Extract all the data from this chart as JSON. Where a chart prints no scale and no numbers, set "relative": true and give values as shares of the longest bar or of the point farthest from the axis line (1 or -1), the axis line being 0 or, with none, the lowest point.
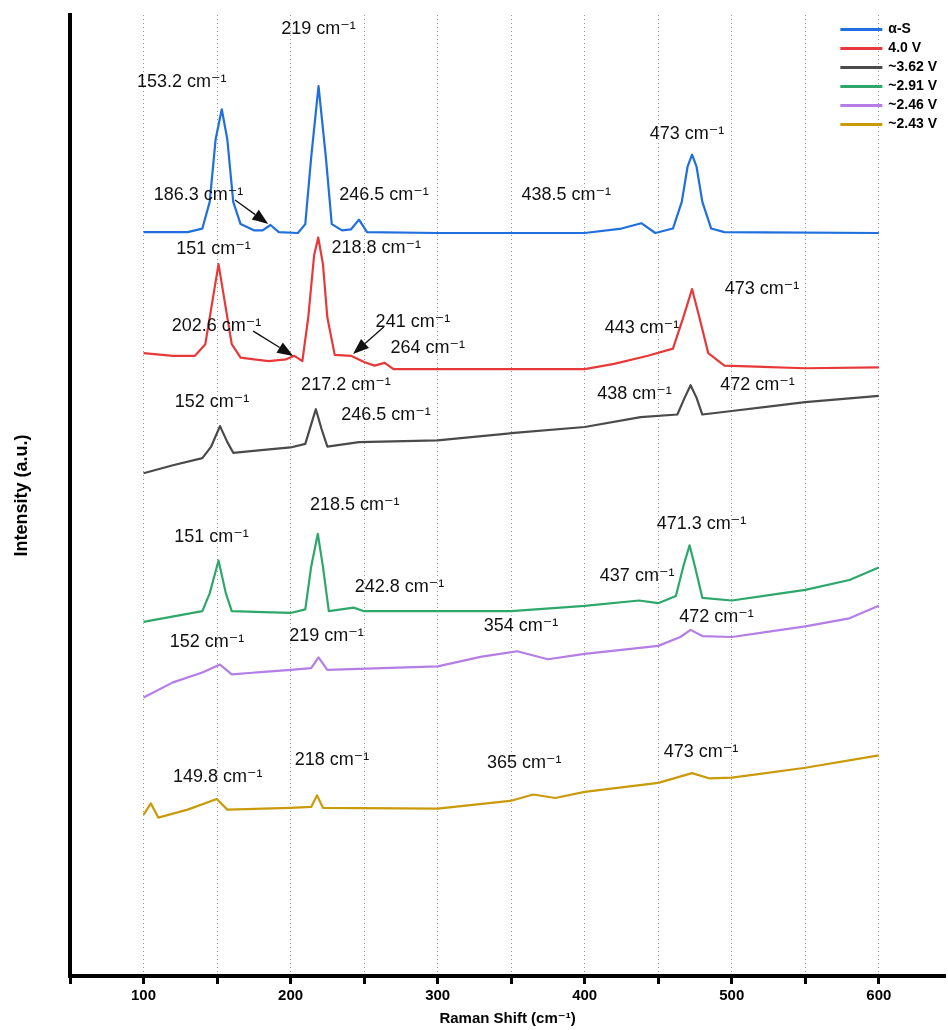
{
  "chart_data": {
    "type": "line",
    "relative": true,
    "xlabel": "Raman Shift (cm⁻¹)",
    "ylabel": "Intensity (a.u.)",
    "xlim": [
      50,
      645
    ],
    "xticks": [
      {
        "value": 50,
        "label": null
      },
      100,
      {
        "value": 150,
        "label": null
      },
      200,
      {
        "value": 250,
        "label": null
      },
      300,
      {
        "value": 350,
        "label": null
      },
      400,
      {
        "value": 450,
        "label": null
      },
      500,
      {
        "value": 550,
        "label": null
      },
      600
    ],
    "grid": "x",
    "legend": "top right",
    "series": [
      {
        "name": "α-S",
        "color": "#1f6fde",
        "x": [
          100,
          130,
          140,
          145,
          149,
          153.2,
          157,
          161,
          166,
          175,
          181,
          186.3,
          192,
          205,
          210,
          214,
          219,
          224,
          228,
          235,
          241,
          246.5,
          252,
          300,
          400,
          425,
          438.5,
          448,
          460,
          466,
          470,
          473,
          476,
          480,
          486,
          495,
          600
        ],
        "values": [
          0.836,
          0.836,
          0.84,
          0.87,
          0.94,
          0.974,
          0.94,
          0.87,
          0.845,
          0.838,
          0.838,
          0.844,
          0.836,
          0.835,
          0.845,
          0.92,
          1.0,
          0.92,
          0.845,
          0.838,
          0.839,
          0.85,
          0.836,
          0.835,
          0.835,
          0.84,
          0.846,
          0.835,
          0.84,
          0.87,
          0.91,
          0.923,
          0.91,
          0.87,
          0.84,
          0.836,
          0.835
        ]
      },
      {
        "name": "4.0 V",
        "color": "#e8393a",
        "x": [
          100,
          120,
          135,
          142,
          146,
          151,
          156,
          160,
          166,
          185,
          197,
          202.6,
          208,
          212,
          216,
          218.8,
          222,
          225,
          230,
          241,
          250,
          257,
          264,
          270,
          300,
          400,
          420,
          443,
          460,
          467,
          473,
          478,
          484,
          495,
          550,
          600
        ],
        "values": [
          0.7,
          0.697,
          0.697,
          0.71,
          0.75,
          0.8,
          0.75,
          0.71,
          0.695,
          0.691,
          0.693,
          0.697,
          0.691,
          0.74,
          0.81,
          0.83,
          0.8,
          0.74,
          0.698,
          0.697,
          0.69,
          0.686,
          0.689,
          0.682,
          0.682,
          0.682,
          0.688,
          0.697,
          0.705,
          0.74,
          0.772,
          0.74,
          0.7,
          0.686,
          0.683,
          0.684
        ]
      },
      {
        "name": "~3.62 V",
        "color": "#4a4a4a",
        "x": [
          100,
          120,
          140,
          146,
          152,
          157,
          161,
          180,
          200,
          210,
          214,
          217.2,
          221,
          225,
          246.5,
          300,
          350,
          400,
          438,
          463,
          468,
          472,
          476,
          480,
          500,
          550,
          600
        ],
        "values": [
          0.565,
          0.574,
          0.582,
          0.595,
          0.618,
          0.6,
          0.588,
          0.591,
          0.594,
          0.598,
          0.62,
          0.637,
          0.615,
          0.595,
          0.6,
          0.602,
          0.61,
          0.617,
          0.628,
          0.631,
          0.65,
          0.664,
          0.65,
          0.631,
          0.635,
          0.645,
          0.652
        ]
      },
      {
        "name": "~2.91 V",
        "color": "#2ea86a",
        "x": [
          100,
          140,
          145,
          151,
          156,
          160,
          200,
          210,
          214,
          218.5,
          222,
          226,
          242.8,
          250,
          300,
          350,
          400,
          437,
          450,
          462,
          467,
          471.3,
          475,
          480,
          500,
          550,
          580,
          600
        ],
        "values": [
          0.398,
          0.41,
          0.43,
          0.467,
          0.43,
          0.41,
          0.408,
          0.412,
          0.46,
          0.497,
          0.46,
          0.41,
          0.414,
          0.41,
          0.41,
          0.41,
          0.416,
          0.422,
          0.419,
          0.427,
          0.46,
          0.484,
          0.46,
          0.425,
          0.422,
          0.434,
          0.445,
          0.459
        ]
      },
      {
        "name": "~2.46 V",
        "color": "#b57de6",
        "x": [
          100,
          120,
          140,
          152,
          160,
          200,
          214,
          219,
          225,
          300,
          330,
          354,
          375,
          400,
          450,
          465,
          472,
          480,
          500,
          550,
          580,
          600
        ],
        "values": [
          0.313,
          0.33,
          0.341,
          0.35,
          0.339,
          0.344,
          0.346,
          0.358,
          0.344,
          0.348,
          0.359,
          0.365,
          0.356,
          0.362,
          0.371,
          0.381,
          0.389,
          0.382,
          0.381,
          0.393,
          0.402,
          0.416
        ]
      },
      {
        "name": "~2.43 V",
        "color": "#c99a0a",
        "x": [
          100,
          105,
          110,
          130,
          149.8,
          157,
          200,
          214,
          218,
          222,
          300,
          350,
          365,
          380,
          400,
          450,
          473,
          485,
          500,
          550,
          600
        ],
        "values": [
          0.181,
          0.194,
          0.178,
          0.187,
          0.199,
          0.187,
          0.189,
          0.19,
          0.203,
          0.189,
          0.188,
          0.197,
          0.204,
          0.2,
          0.207,
          0.217,
          0.228,
          0.222,
          0.223,
          0.234,
          0.248
        ]
      }
    ],
    "annotations": [
      {
        "text": "153.2 cm⁻¹",
        "x": 153.2,
        "y": 0.974
      },
      {
        "text": "219 cm⁻¹",
        "x": 219,
        "y": 1.0
      },
      {
        "text": "186.3 cm⁻¹",
        "x": 186.3,
        "y": 0.844
      },
      {
        "text": "246.5 cm⁻¹",
        "x": 246.5,
        "y": 0.85
      },
      {
        "text": "438.5 cm⁻¹",
        "x": 438.5,
        "y": 0.846
      },
      {
        "text": "473 cm⁻¹",
        "x": 473,
        "y": 0.923
      },
      {
        "text": "151 cm⁻¹",
        "x": 151,
        "y": 0.8
      },
      {
        "text": "218.8 cm⁻¹",
        "x": 218.8,
        "y": 0.83
      },
      {
        "text": "202.6 cm⁻¹",
        "x": 202.6,
        "y": 0.697
      },
      {
        "text": "241 cm⁻¹",
        "x": 241,
        "y": 0.697
      },
      {
        "text": "264 cm⁻¹",
        "x": 264,
        "y": 0.689
      },
      {
        "text": "443 cm⁻¹",
        "x": 443,
        "y": 0.697
      },
      {
        "text": "473 cm⁻¹",
        "x": 473,
        "y": 0.772
      },
      {
        "text": "152 cm⁻¹",
        "x": 152,
        "y": 0.618
      },
      {
        "text": "217.2 cm⁻¹",
        "x": 217.2,
        "y": 0.637
      },
      {
        "text": "246.5 cm⁻¹",
        "x": 246.5,
        "y": 0.6
      },
      {
        "text": "438 cm⁻¹",
        "x": 438,
        "y": 0.628
      },
      {
        "text": "472 cm⁻¹",
        "x": 472,
        "y": 0.664
      },
      {
        "text": "151 cm⁻¹",
        "x": 151,
        "y": 0.467
      },
      {
        "text": "218.5 cm⁻¹",
        "x": 218.5,
        "y": 0.497
      },
      {
        "text": "242.8 cm⁻¹",
        "x": 242.8,
        "y": 0.414
      },
      {
        "text": "437 cm⁻¹",
        "x": 437,
        "y": 0.422
      },
      {
        "text": "471.3 cm⁻¹",
        "x": 471.3,
        "y": 0.484
      },
      {
        "text": "152 cm⁻¹",
        "x": 152,
        "y": 0.35
      },
      {
        "text": "219 cm⁻¹",
        "x": 219,
        "y": 0.358
      },
      {
        "text": "354 cm⁻¹",
        "x": 354,
        "y": 0.365
      },
      {
        "text": "472 cm⁻¹",
        "x": 472,
        "y": 0.389
      },
      {
        "text": "149.8 cm⁻¹",
        "x": 149.8,
        "y": 0.199
      },
      {
        "text": "218 cm⁻¹",
        "x": 218,
        "y": 0.203
      },
      {
        "text": "365 cm⁻¹",
        "x": 365,
        "y": 0.204
      },
      {
        "text": "473 cm⁻¹",
        "x": 473,
        "y": 0.228
      }
    ]
  }
}
